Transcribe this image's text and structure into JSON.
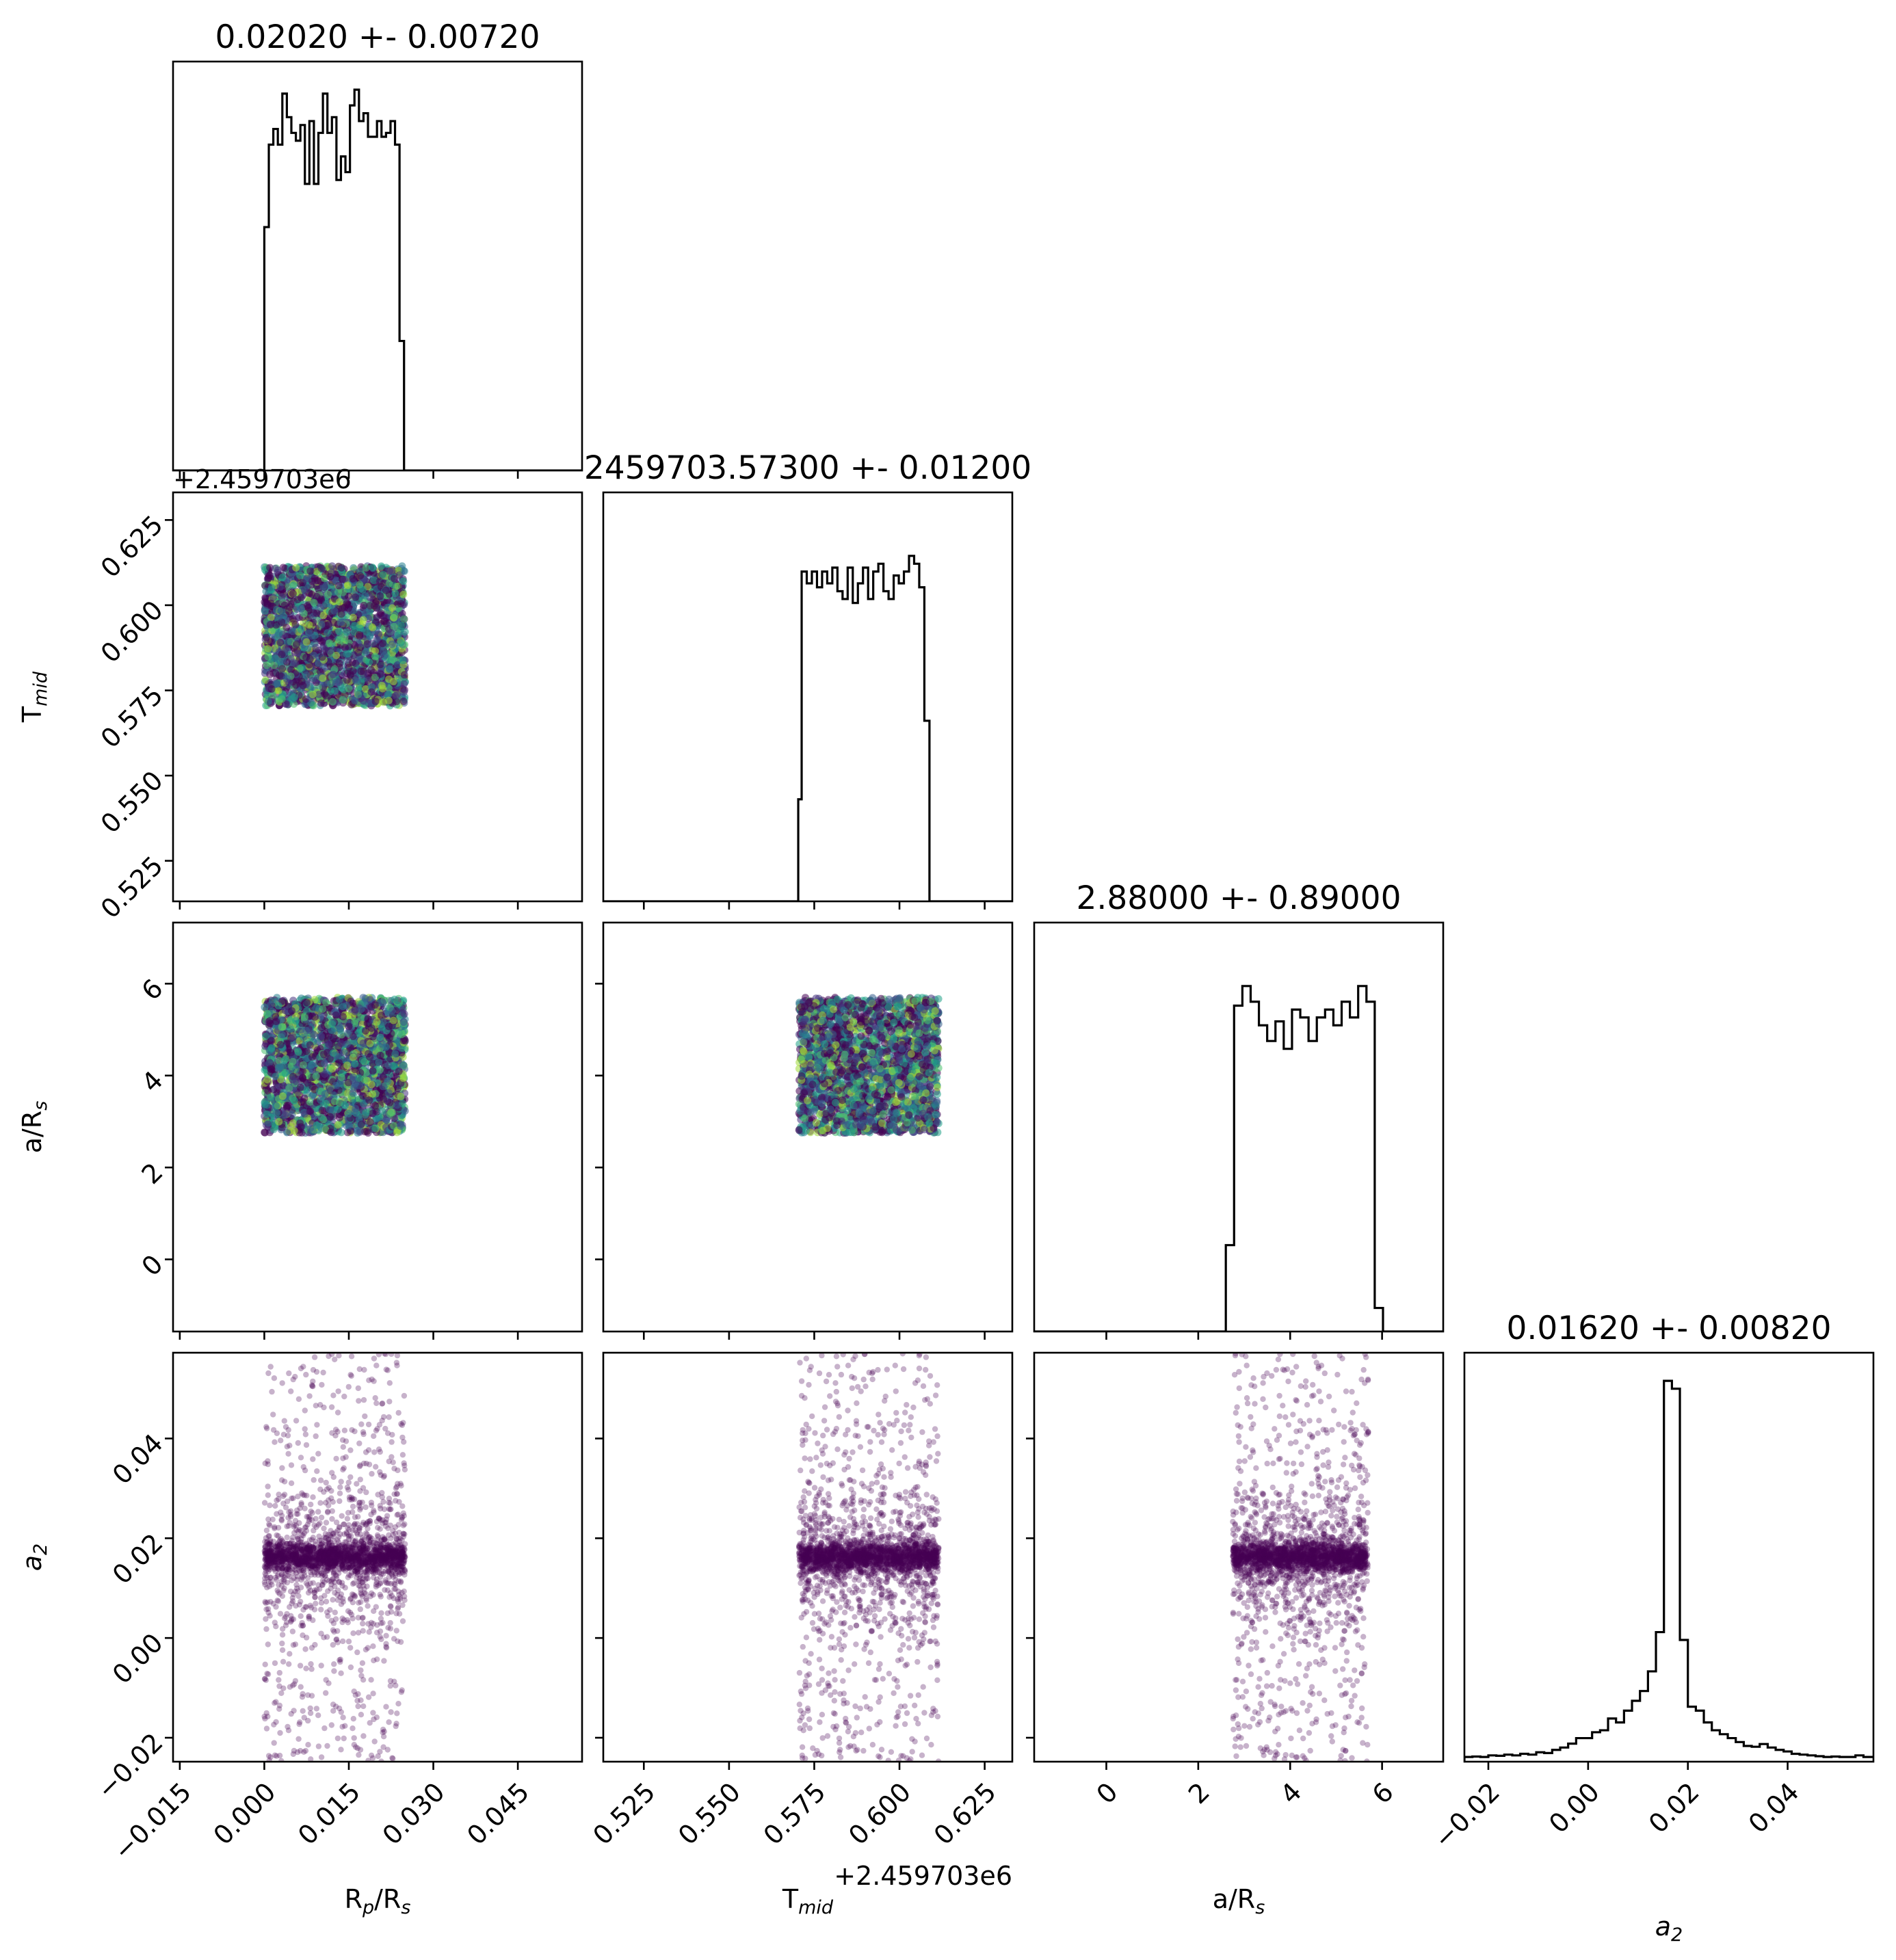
{
  "chart_data": {
    "type": "corner",
    "parameters": [
      {
        "key": "rp",
        "label_main": "R",
        "label_sub1": "p",
        "label_mid": "/R",
        "label_sub2": "s",
        "range": [
          -0.0162,
          0.0564
        ]
      },
      {
        "key": "tmid",
        "label_main": "T",
        "label_sub1": "mid",
        "range": [
          0.5131,
          0.6331
        ],
        "offset": "+2.459703e6"
      },
      {
        "key": "ars",
        "label_main": "a/R",
        "label_sub1": "s",
        "range": [
          -1.57,
          7.33
        ]
      },
      {
        "key": "a2",
        "label_main": "a",
        "label_sub1": "2",
        "range": [
          -0.0248,
          0.0572
        ]
      }
    ],
    "titles": [
      "0.02020 +- 0.00720",
      "2459703.57300 +- 0.01200",
      "2.88000 +- 0.89000",
      "0.01620 +- 0.00820"
    ],
    "ticks": [
      {
        "values": [
          -0.015,
          0.0,
          0.015,
          0.03,
          0.045
        ],
        "labels": [
          "−0.015",
          "0.000",
          "0.015",
          "0.030",
          "0.045"
        ]
      },
      {
        "values": [
          0.525,
          0.55,
          0.575,
          0.6,
          0.625
        ],
        "labels": [
          "0.525",
          "0.550",
          "0.575",
          "0.600",
          "0.625"
        ]
      },
      {
        "values": [
          0,
          2,
          4,
          6
        ],
        "labels": [
          "0",
          "2",
          "4",
          "6"
        ]
      },
      {
        "values": [
          -0.02,
          0.0,
          0.02,
          0.04
        ],
        "labels": [
          "−0.02",
          "0.00",
          "0.02",
          "0.04"
        ]
      }
    ],
    "histograms": [
      {
        "param": "rp",
        "edges_range": [
          -0.0162,
          0.0564
        ],
        "bins": 50,
        "counts": [
          0,
          0,
          0,
          0,
          0,
          0,
          0,
          0,
          0,
          0,
          0,
          0,
          0,
          0,
          0,
          0,
          0,
          0,
          0,
          0,
          0,
          0,
          0,
          0,
          0,
          0,
          0,
          0,
          0,
          0,
          0,
          0,
          0,
          0,
          0,
          0,
          0,
          0,
          0,
          0,
          0,
          0,
          0,
          0,
          0,
          0,
          0,
          0,
          0,
          0
        ],
        "steps": [
          [
            0.0,
            0.62
          ],
          [
            0.0008,
            0.83
          ],
          [
            0.0016,
            0.87
          ],
          [
            0.0024,
            0.83
          ],
          [
            0.0032,
            0.96
          ],
          [
            0.004,
            0.9
          ],
          [
            0.0048,
            0.86
          ],
          [
            0.0056,
            0.84
          ],
          [
            0.0064,
            0.88
          ],
          [
            0.0072,
            0.73
          ],
          [
            0.008,
            0.89
          ],
          [
            0.0088,
            0.73
          ],
          [
            0.0096,
            0.86
          ],
          [
            0.0104,
            0.96
          ],
          [
            0.0112,
            0.86
          ],
          [
            0.012,
            0.9
          ],
          [
            0.0128,
            0.74
          ],
          [
            0.0136,
            0.8
          ],
          [
            0.0144,
            0.76
          ],
          [
            0.0152,
            0.93
          ],
          [
            0.016,
            0.97
          ],
          [
            0.0168,
            0.89
          ],
          [
            0.0176,
            0.91
          ],
          [
            0.0184,
            0.85
          ],
          [
            0.0192,
            0.85
          ],
          [
            0.02,
            0.89
          ],
          [
            0.0208,
            0.85
          ],
          [
            0.0216,
            0.86
          ],
          [
            0.0224,
            0.89
          ],
          [
            0.0232,
            0.83
          ],
          [
            0.024,
            0.33
          ],
          [
            0.0248,
            0.0
          ]
        ]
      },
      {
        "param": "tmid",
        "steps": [
          [
            0.5703,
            0.26
          ],
          [
            0.5713,
            0.84
          ],
          [
            0.5728,
            0.81
          ],
          [
            0.5743,
            0.84
          ],
          [
            0.5758,
            0.8
          ],
          [
            0.5773,
            0.84
          ],
          [
            0.5788,
            0.81
          ],
          [
            0.5803,
            0.85
          ],
          [
            0.5818,
            0.79
          ],
          [
            0.5833,
            0.77
          ],
          [
            0.5848,
            0.85
          ],
          [
            0.5863,
            0.76
          ],
          [
            0.5878,
            0.81
          ],
          [
            0.5893,
            0.85
          ],
          [
            0.5908,
            0.77
          ],
          [
            0.5923,
            0.84
          ],
          [
            0.5938,
            0.86
          ],
          [
            0.5953,
            0.79
          ],
          [
            0.5968,
            0.77
          ],
          [
            0.5983,
            0.83
          ],
          [
            0.5998,
            0.81
          ],
          [
            0.6013,
            0.84
          ],
          [
            0.6028,
            0.88
          ],
          [
            0.6043,
            0.86
          ],
          [
            0.6058,
            0.8
          ],
          [
            0.6073,
            0.46
          ],
          [
            0.6088,
            0.0
          ]
        ]
      },
      {
        "param": "ars",
        "steps": [
          [
            2.6,
            0.22
          ],
          [
            2.78,
            0.83
          ],
          [
            2.96,
            0.88
          ],
          [
            3.14,
            0.84
          ],
          [
            3.32,
            0.78
          ],
          [
            3.5,
            0.74
          ],
          [
            3.68,
            0.79
          ],
          [
            3.86,
            0.72
          ],
          [
            4.04,
            0.82
          ],
          [
            4.22,
            0.8
          ],
          [
            4.4,
            0.74
          ],
          [
            4.58,
            0.8
          ],
          [
            4.76,
            0.82
          ],
          [
            4.94,
            0.78
          ],
          [
            5.12,
            0.84
          ],
          [
            5.3,
            0.8
          ],
          [
            5.48,
            0.88
          ],
          [
            5.66,
            0.84
          ],
          [
            5.84,
            0.06
          ],
          [
            6.02,
            0.0
          ]
        ]
      },
      {
        "param": "a2",
        "steps": [
          [
            -0.0248,
            0.012
          ],
          [
            -0.0232,
            0.013
          ],
          [
            -0.0216,
            0.012
          ],
          [
            -0.02,
            0.016
          ],
          [
            -0.0184,
            0.015
          ],
          [
            -0.0168,
            0.018
          ],
          [
            -0.0152,
            0.016
          ],
          [
            -0.0136,
            0.02
          ],
          [
            -0.012,
            0.018
          ],
          [
            -0.0104,
            0.024
          ],
          [
            -0.0088,
            0.022
          ],
          [
            -0.0072,
            0.03
          ],
          [
            -0.0056,
            0.036
          ],
          [
            -0.004,
            0.046
          ],
          [
            -0.0024,
            0.06
          ],
          [
            -0.0008,
            0.06
          ],
          [
            0.0008,
            0.075
          ],
          [
            0.0024,
            0.08
          ],
          [
            0.004,
            0.11
          ],
          [
            0.0056,
            0.1
          ],
          [
            0.0072,
            0.13
          ],
          [
            0.0088,
            0.155
          ],
          [
            0.0104,
            0.18
          ],
          [
            0.012,
            0.23
          ],
          [
            0.0136,
            0.33
          ],
          [
            0.0152,
            0.97
          ],
          [
            0.0168,
            0.95
          ],
          [
            0.0184,
            0.31
          ],
          [
            0.02,
            0.14
          ],
          [
            0.0216,
            0.13
          ],
          [
            0.0232,
            0.1
          ],
          [
            0.0248,
            0.08
          ],
          [
            0.0264,
            0.07
          ],
          [
            0.028,
            0.06
          ],
          [
            0.0296,
            0.05
          ],
          [
            0.0312,
            0.04
          ],
          [
            0.0328,
            0.038
          ],
          [
            0.0344,
            0.045
          ],
          [
            0.036,
            0.036
          ],
          [
            0.0376,
            0.03
          ],
          [
            0.0392,
            0.026
          ],
          [
            0.0408,
            0.02
          ],
          [
            0.0424,
            0.018
          ],
          [
            0.044,
            0.016
          ],
          [
            0.0456,
            0.014
          ],
          [
            0.0472,
            0.012
          ],
          [
            0.0488,
            0.013
          ],
          [
            0.0504,
            0.012
          ],
          [
            0.052,
            0.012
          ],
          [
            0.0536,
            0.016
          ],
          [
            0.0552,
            0.012
          ],
          [
            0.0568,
            0.012
          ]
        ]
      }
    ],
    "scatter": {
      "color_scale": "viridis",
      "point_color": "#440154",
      "samples_described": {
        "rp_range": [
          0.0,
          0.025
        ],
        "tmid_range": [
          0.5705,
          0.6115
        ],
        "ars_range": [
          2.75,
          5.7
        ],
        "a2_center": 0.0162,
        "a2_core_width": 0.0015,
        "a2_spread_range": [
          -0.0248,
          0.0572
        ]
      }
    }
  }
}
